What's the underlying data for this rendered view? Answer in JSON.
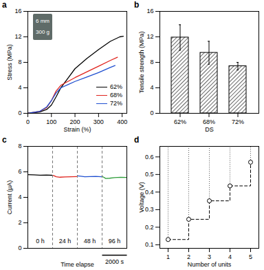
{
  "chart_data": [
    {
      "type": "line",
      "title": "a",
      "x_label": "Strain (%)",
      "y_label": "Stress (MPa)",
      "xlim": [
        0,
        420
      ],
      "xticks": [
        0,
        100,
        200,
        300,
        400
      ],
      "ylim": [
        0,
        16
      ],
      "yticks": [
        0,
        4,
        8,
        12,
        16
      ],
      "legend": "bottom-right",
      "annotations": [
        "6 mm",
        "300 g"
      ],
      "series": [
        {
          "name": "62%",
          "color": "#000000",
          "x": [
            0,
            50,
            80,
            100,
            120,
            140,
            170,
            200,
            250,
            300,
            350,
            390,
            405
          ],
          "values": [
            0,
            0.2,
            0.6,
            1.3,
            2.6,
            4.0,
            5.5,
            7.0,
            8.6,
            10.0,
            11.3,
            12.0,
            12.1
          ]
        },
        {
          "name": "68%",
          "color": "#e0231d",
          "x": [
            0,
            50,
            80,
            100,
            120,
            140,
            170,
            200,
            250,
            300,
            350,
            380
          ],
          "values": [
            0,
            0.3,
            0.9,
            2.0,
            3.5,
            4.4,
            5.0,
            5.6,
            6.5,
            7.4,
            8.3,
            8.8
          ]
        },
        {
          "name": "72%",
          "color": "#1f4fd0",
          "x": [
            0,
            50,
            80,
            100,
            120,
            140,
            170,
            200,
            250,
            300,
            350,
            370
          ],
          "values": [
            0,
            0.3,
            1.0,
            2.0,
            3.2,
            4.0,
            4.5,
            5.0,
            5.7,
            6.4,
            7.2,
            7.5
          ]
        }
      ]
    },
    {
      "type": "bar",
      "title": "b",
      "x_label": "DS",
      "y_label": "Tensile strength (MPa)",
      "categories": [
        "62%",
        "68%",
        "72%"
      ],
      "values": [
        11.9,
        9.5,
        7.4
      ],
      "errors": [
        2.0,
        1.8,
        0.6
      ],
      "color": "#000000",
      "ylim": [
        0,
        16
      ],
      "yticks": [
        0,
        4,
        8,
        12,
        16
      ]
    },
    {
      "type": "line",
      "title": "c",
      "x_label": "Time elapse",
      "y_label": "Current (μA)",
      "xlim": [
        0,
        8000
      ],
      "ylim": [
        0,
        8
      ],
      "yticks": [
        0,
        2,
        4,
        6,
        8
      ],
      "tick_labels": "y",
      "scale_bar": {
        "value": 2000,
        "label": "2000 s"
      },
      "series": [
        {
          "name": "0 h",
          "color": "#000000",
          "x": [
            50,
            500,
            1000,
            1500,
            1950
          ],
          "values": [
            5.78,
            5.76,
            5.74,
            5.75,
            5.73
          ]
        },
        {
          "name": "24 h",
          "color": "#e0231d",
          "x": [
            2050,
            2300,
            2600,
            3000,
            3500,
            3950
          ],
          "values": [
            5.72,
            5.62,
            5.58,
            5.6,
            5.62,
            5.63
          ]
        },
        {
          "name": "48 h",
          "color": "#1f4fd0",
          "x": [
            4050,
            4300,
            4600,
            5000,
            5500,
            5950
          ],
          "values": [
            5.68,
            5.65,
            5.62,
            5.63,
            5.64,
            5.62
          ]
        },
        {
          "name": "96 h",
          "color": "#2e9d3a",
          "x": [
            6050,
            6300,
            6600,
            7000,
            7500,
            7950
          ],
          "values": [
            5.62,
            5.48,
            5.5,
            5.55,
            5.57,
            5.56
          ]
        }
      ]
    },
    {
      "type": "step",
      "title": "d",
      "x_label": "Number of units",
      "y_label": "Voltage (V)",
      "x": [
        1,
        2,
        3,
        4,
        5
      ],
      "values": [
        0.13,
        0.245,
        0.35,
        0.435,
        0.57
      ],
      "xlim": [
        0.6,
        5.4
      ],
      "xticks": [
        1,
        2,
        3,
        4,
        5
      ],
      "ylim": [
        0.08,
        0.66
      ],
      "yticks": [
        0.1,
        0.2,
        0.3,
        0.4,
        0.5,
        0.6
      ],
      "color": "#000000",
      "marker": "circle-open",
      "line_style": "dashed"
    }
  ]
}
